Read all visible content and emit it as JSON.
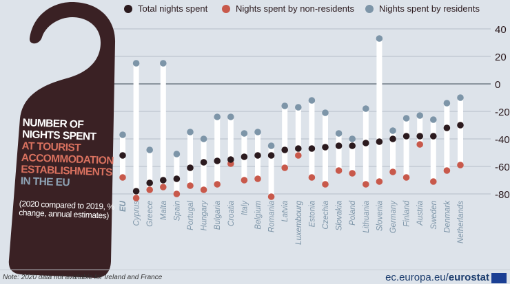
{
  "title": {
    "line1": "NUMBER OF",
    "line2": "NIGHTS SPENT",
    "line3": "AT TOURIST",
    "line4": "ACCOMMODATION",
    "line5": "ESTABLISHMENTS",
    "line6": "IN THE EU",
    "subtitle": "(2020 compared to 2019, % change, annual estimates)"
  },
  "footer": {
    "note": "Note: 2020 data not available for Ireland and France",
    "brand_prefix": "ec.europa.eu/",
    "brand_bold": "eurostat"
  },
  "colors": {
    "total": "#2b1a1e",
    "non_residents": "#c8594b",
    "residents": "#7d95a8",
    "hanger": "#3a2124",
    "background": "#dde3ea"
  },
  "chart_data": {
    "type": "scatter",
    "ylim": [
      -85,
      40
    ],
    "yticks": [
      40,
      20,
      0,
      -20,
      -40,
      -60,
      -80
    ],
    "grid": true,
    "legend_position": "top",
    "categories": [
      "EU",
      "Cyprus",
      "Greece",
      "Malta",
      "Spain",
      "Portugal",
      "Hungary",
      "Bulgaria",
      "Croatia",
      "Italy",
      "Belgium",
      "Romania",
      "Latvia",
      "Luxembourg",
      "Estonia",
      "Czechia",
      "Slovakia",
      "Poland",
      "Lithuania",
      "Slovenia",
      "Germany",
      "Finland",
      "Austria",
      "Sweden",
      "Denmark",
      "Netherlands"
    ],
    "series": [
      {
        "name": "Total nights spent",
        "values": [
          -52,
          -78,
          -72,
          -70,
          -69,
          -61,
          -57,
          -56,
          -55,
          -53,
          -52,
          -52,
          -48,
          -47,
          -47,
          -46,
          -45,
          -45,
          -43,
          -42,
          -40,
          -38,
          -38,
          -38,
          -32,
          -30
        ]
      },
      {
        "name": "Nights spent by non-residents",
        "values": [
          -68,
          -83,
          -77,
          -75,
          -80,
          -74,
          -77,
          -73,
          -58,
          -70,
          -69,
          -82,
          -61,
          -52,
          -68,
          -73,
          -63,
          -65,
          -73,
          -71,
          -64,
          -68,
          -44,
          -71,
          -63,
          -59
        ]
      },
      {
        "name": "Nights spent by residents",
        "values": [
          -37,
          15,
          -48,
          15,
          -51,
          -35,
          -40,
          -24,
          -24,
          -36,
          -35,
          -45,
          -16,
          -17,
          -12,
          -21,
          -36,
          -40,
          -18,
          33,
          -34,
          -25,
          -23,
          -26,
          -14,
          -10
        ]
      }
    ]
  }
}
